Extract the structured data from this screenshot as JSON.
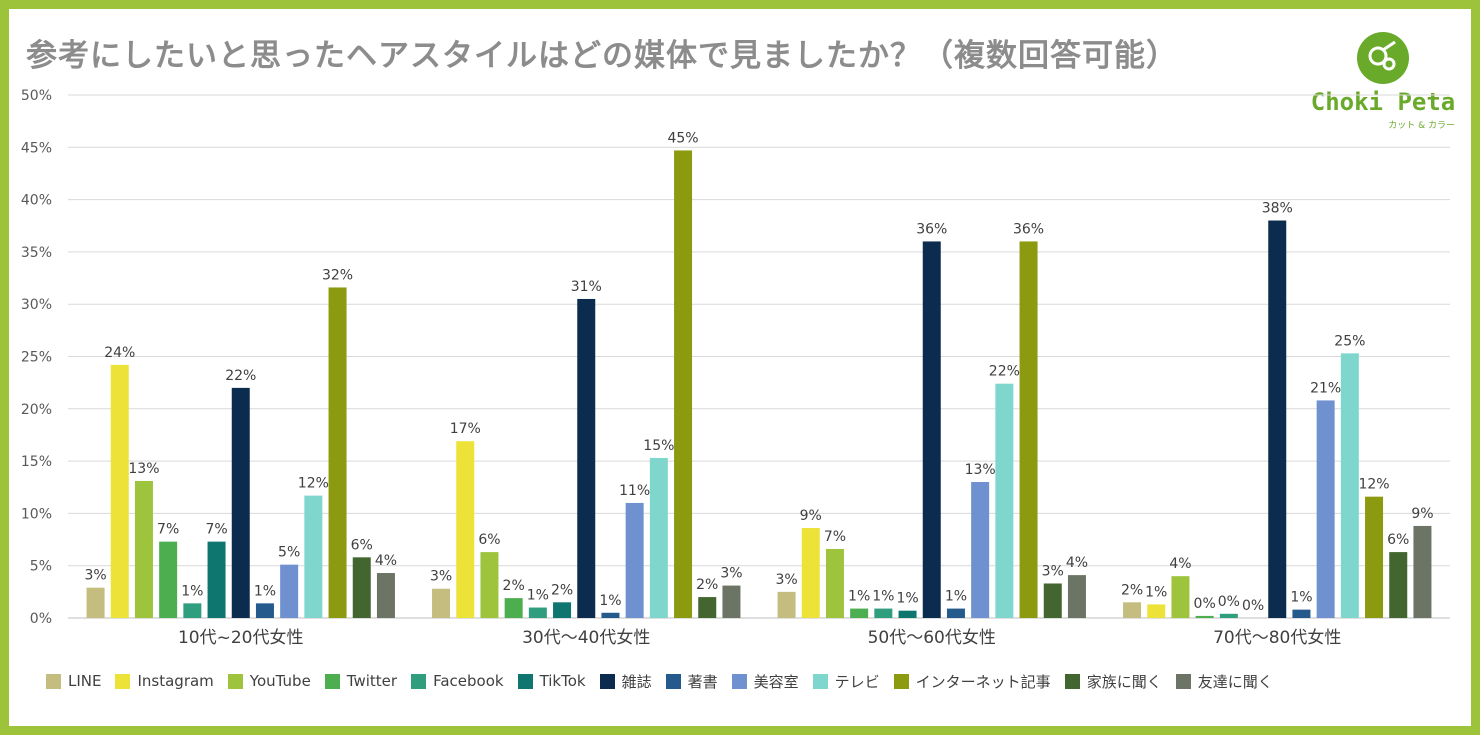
{
  "title": "参考にしたいと思ったヘアスタイルはどの媒体で見ましたか？（複数回答可能）",
  "logo": {
    "name": "Choki Peta",
    "subtitle": "カット & カラー",
    "icon": "scissors-icon",
    "color": "#6aaa2a"
  },
  "chart_data": {
    "type": "bar",
    "title": "参考にしたいと思ったヘアスタイルはどの媒体で見ましたか？（複数回答可能）",
    "xlabel": "",
    "ylabel": "",
    "ylim": [
      0,
      50
    ],
    "yticks": [
      0,
      5,
      10,
      15,
      20,
      25,
      30,
      35,
      40,
      45,
      50
    ],
    "ytick_suffix": "%",
    "grid": true,
    "legend_position": "bottom",
    "categories": [
      "10代~20代女性",
      "30代～40代女性",
      "50代～60代女性",
      "70代～80代女性"
    ],
    "series": [
      {
        "name": "LINE",
        "color": "#c4bd7f",
        "values": [
          2.9,
          2.8,
          2.5,
          1.5
        ],
        "labels": [
          "3%",
          "3%",
          "3%",
          "2%"
        ]
      },
      {
        "name": "Instagram",
        "color": "#ede238",
        "values": [
          24.2,
          16.9,
          8.6,
          1.3
        ],
        "labels": [
          "24%",
          "17%",
          "9%",
          "1%"
        ]
      },
      {
        "name": "YouTube",
        "color": "#9ec43e",
        "values": [
          13.1,
          6.3,
          6.6,
          4.0
        ],
        "labels": [
          "13%",
          "6%",
          "7%",
          "4%"
        ]
      },
      {
        "name": "Twitter",
        "color": "#4cae4f",
        "values": [
          7.3,
          1.9,
          0.9,
          0.2
        ],
        "labels": [
          "7%",
          "2%",
          "1%",
          "0%"
        ]
      },
      {
        "name": "Facebook",
        "color": "#2e9e7e",
        "values": [
          1.4,
          1.0,
          0.9,
          0.4
        ],
        "labels": [
          "1%",
          "1%",
          "1%",
          "0%"
        ]
      },
      {
        "name": "TikTok",
        "color": "#0e766f",
        "values": [
          7.3,
          1.5,
          0.7,
          0.0
        ],
        "labels": [
          "7%",
          "2%",
          "1%",
          "0%"
        ]
      },
      {
        "name": "雑誌",
        "color": "#0b2c4f",
        "values": [
          22.0,
          30.5,
          36.0,
          38.0
        ],
        "labels": [
          "22%",
          "31%",
          "36%",
          "38%"
        ]
      },
      {
        "name": "著書",
        "color": "#245a8c",
        "values": [
          1.4,
          0.5,
          0.9,
          0.8
        ],
        "labels": [
          "1%",
          "1%",
          "1%",
          "1%"
        ]
      },
      {
        "name": "美容室",
        "color": "#6f91cf",
        "values": [
          5.1,
          11.0,
          13.0,
          20.8
        ],
        "labels": [
          "5%",
          "11%",
          "13%",
          "21%"
        ]
      },
      {
        "name": "テレビ",
        "color": "#7fd6cc",
        "values": [
          11.7,
          15.3,
          22.4,
          25.3
        ],
        "labels": [
          "12%",
          "15%",
          "22%",
          "25%"
        ]
      },
      {
        "name": "インターネット記事",
        "color": "#8b9a0f",
        "values": [
          31.6,
          44.7,
          36.0,
          11.6
        ],
        "labels": [
          "32%",
          "45%",
          "36%",
          "12%"
        ]
      },
      {
        "name": "家族に聞く",
        "color": "#436530",
        "values": [
          5.8,
          2.0,
          3.3,
          6.3
        ],
        "labels": [
          "6%",
          "2%",
          "3%",
          "6%"
        ]
      },
      {
        "name": "友達に聞く",
        "color": "#6b7465",
        "values": [
          4.3,
          3.1,
          4.1,
          8.8
        ],
        "labels": [
          "4%",
          "3%",
          "4%",
          "9%"
        ]
      }
    ]
  }
}
